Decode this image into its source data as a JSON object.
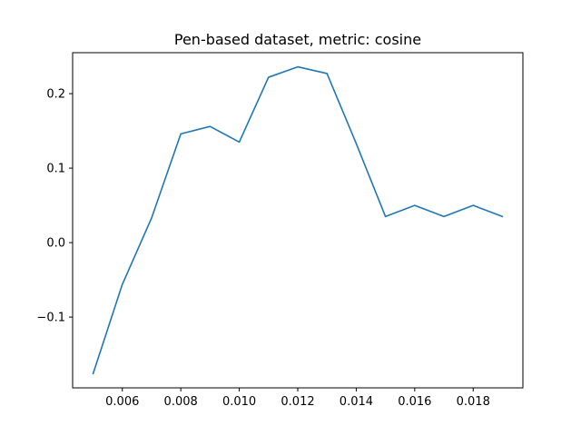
{
  "chart_data": {
    "type": "line",
    "title": "Pen-based dataset, metric: cosine",
    "xlabel": "",
    "ylabel": "",
    "xlim": [
      0.0043,
      0.0197
    ],
    "ylim": [
      -0.195,
      0.255
    ],
    "grid": false,
    "x_ticks": [
      "0.006",
      "0.008",
      "0.010",
      "0.012",
      "0.014",
      "0.016",
      "0.018"
    ],
    "x_tick_values": [
      0.006,
      0.008,
      0.01,
      0.012,
      0.014,
      0.016,
      0.018
    ],
    "y_ticks": [
      "−0.1",
      "0.0",
      "0.1",
      "0.2"
    ],
    "y_tick_values": [
      -0.1,
      0.0,
      0.1,
      0.2
    ],
    "series": [
      {
        "color": "#1f77b4",
        "x": [
          0.005,
          0.006,
          0.007,
          0.008,
          0.009,
          0.01,
          0.011,
          0.012,
          0.013,
          0.014,
          0.015,
          0.016,
          0.017,
          0.018,
          0.019
        ],
        "y": [
          -0.176,
          -0.056,
          0.033,
          0.146,
          0.156,
          0.135,
          0.222,
          0.236,
          0.227,
          0.133,
          0.035,
          0.05,
          0.035,
          0.05,
          0.035
        ]
      }
    ]
  }
}
